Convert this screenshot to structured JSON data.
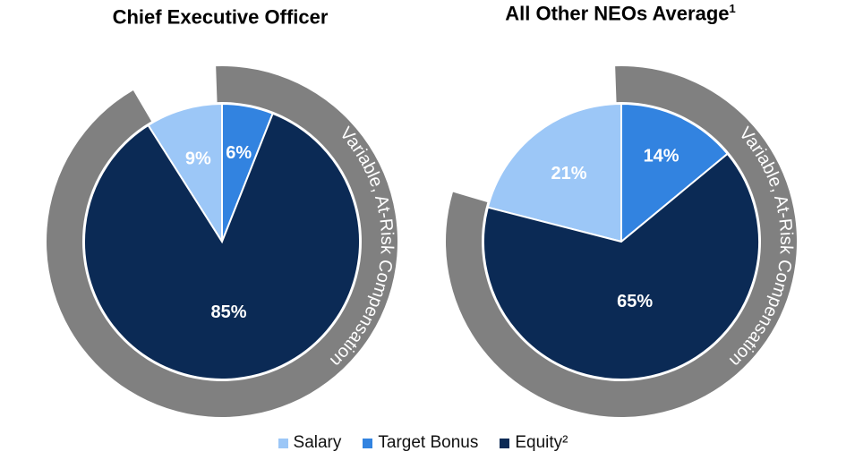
{
  "chart_data": [
    {
      "type": "pie",
      "title": "Chief Executive Officer",
      "title_note": "",
      "categories": [
        "Salary",
        "Target Bonus",
        "Equity²"
      ],
      "values": [
        9,
        6,
        85
      ],
      "labels": [
        "9%",
        "6%",
        "85%"
      ],
      "arc_label": "Variable, At-Risk Compensation",
      "arc_covers": [
        "Target Bonus",
        "Equity²"
      ]
    },
    {
      "type": "pie",
      "title": "All Other NEOs Average",
      "title_note": "1",
      "categories": [
        "Salary",
        "Target Bonus",
        "Equity²"
      ],
      "values": [
        21,
        14,
        65
      ],
      "labels": [
        "21%",
        "14%",
        "65%"
      ],
      "arc_label": "Variable, At-Risk Compensation",
      "arc_covers": [
        "Target Bonus",
        "Equity²"
      ]
    }
  ],
  "legend": [
    {
      "label": "Salary",
      "color": "#9cc7f7"
    },
    {
      "label": "Target Bonus",
      "color": "#3283e0"
    },
    {
      "label": "Equity²",
      "color": "#0b2a55"
    }
  ],
  "colors": {
    "salary": "#9cc7f7",
    "target_bonus": "#3283e0",
    "equity": "#0b2a55",
    "arc": "#808080",
    "arc_text": "#ffffff"
  }
}
